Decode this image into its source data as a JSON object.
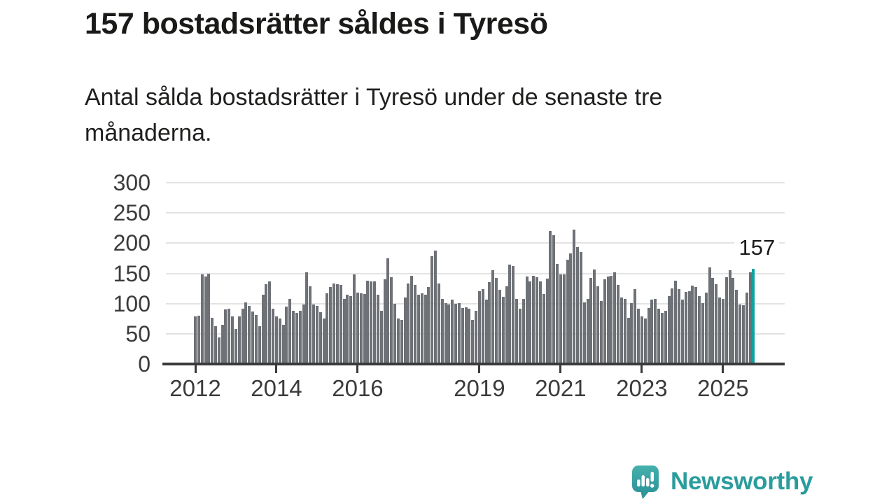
{
  "page": {
    "title": "157 bostadsrätter såldes i Tyresö",
    "subtitle": "Antal sålda bostadsrätter i Tyresö under de senaste tre\nmånaderna."
  },
  "chart_data": {
    "type": "bar",
    "title": "157 bostadsrätter såldes i Tyresö",
    "subtitle": "Antal sålda bostadsrätter i Tyresö under de senaste tre månaderna.",
    "frequency": "monthly",
    "x_start": "2012-01",
    "x_end": "2025-10",
    "xlabel": "",
    "ylabel": "",
    "ylim": [
      0,
      300
    ],
    "yticks": [
      0,
      50,
      100,
      150,
      200,
      250,
      300
    ],
    "grid": true,
    "gridline_color": "#e3e3e3",
    "axis_color": "#3b3b3c",
    "bar_color": "#6e7176",
    "xticks": [
      {
        "label": "2012",
        "month": 0
      },
      {
        "label": "2014",
        "month": 24
      },
      {
        "label": "2016",
        "month": 48
      },
      {
        "label": "2019",
        "month": 84
      },
      {
        "label": "2021",
        "month": 108
      },
      {
        "label": "2023",
        "month": 132
      },
      {
        "label": "2025",
        "month": 156
      }
    ],
    "values": [
      79,
      80,
      148,
      145,
      149,
      77,
      63,
      44,
      65,
      90,
      92,
      79,
      58,
      79,
      92,
      102,
      96,
      87,
      81,
      62,
      115,
      132,
      137,
      92,
      79,
      75,
      65,
      95,
      108,
      88,
      85,
      88,
      99,
      152,
      129,
      98,
      96,
      86,
      75,
      117,
      127,
      133,
      132,
      131,
      108,
      115,
      112,
      148,
      118,
      117,
      116,
      138,
      137,
      137,
      115,
      88,
      140,
      175,
      144,
      100,
      75,
      73,
      110,
      133,
      146,
      131,
      115,
      117,
      115,
      127,
      178,
      188,
      133,
      108,
      101,
      98,
      107,
      100,
      101,
      93,
      94,
      92,
      73,
      88,
      120,
      124,
      107,
      135,
      155,
      143,
      123,
      111,
      129,
      165,
      162,
      108,
      92,
      108,
      145,
      137,
      146,
      144,
      137,
      116,
      141,
      220,
      213,
      166,
      148,
      148,
      173,
      183,
      222,
      193,
      185,
      102,
      108,
      142,
      156,
      129,
      104,
      140,
      145,
      146,
      152,
      131,
      110,
      108,
      76,
      101,
      124,
      92,
      79,
      75,
      93,
      106,
      108,
      92,
      85,
      88,
      112,
      125,
      138,
      124,
      106,
      119,
      121,
      130,
      128,
      112,
      101,
      118,
      160,
      142,
      132,
      110,
      108,
      144,
      155,
      143,
      123,
      98,
      97,
      118,
      152,
      157
    ],
    "highlight": {
      "index": 165,
      "value": 157,
      "label": "157",
      "color": "#0fa2a0"
    }
  },
  "branding": {
    "logo_text": "Newsworthy",
    "logo_text_color": "#2b9c9d",
    "logo_mark_color": "#3ba5a3"
  }
}
